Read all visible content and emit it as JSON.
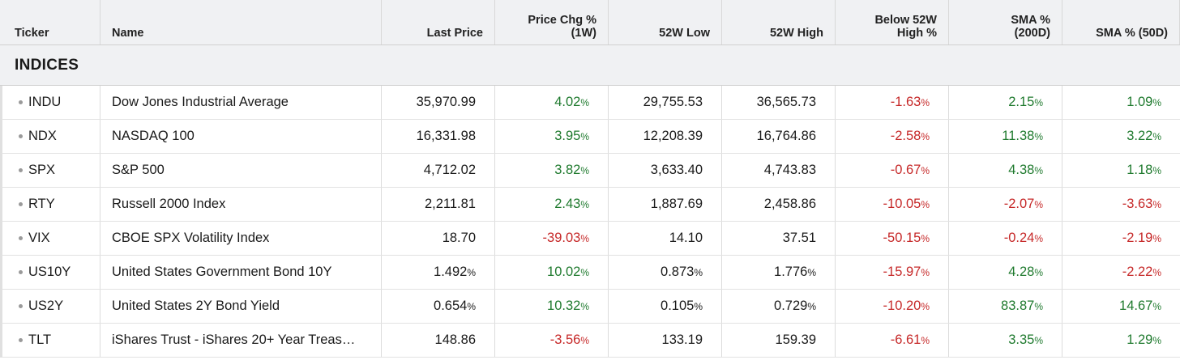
{
  "headers": {
    "ticker": "Ticker",
    "name": "Name",
    "last_price": "Last Price",
    "price_chg_1": "Price Chg %",
    "price_chg_2": "(1W)",
    "low_52w": "52W Low",
    "high_52w": "52W High",
    "below_high_1": "Below 52W",
    "below_high_2": "High %",
    "sma200_1": "SMA %",
    "sma200_2": "(200D)",
    "sma50": "SMA % (50D)"
  },
  "section_title": "INDICES",
  "colors": {
    "positive": "#1f7a2e",
    "negative": "#c62828"
  },
  "rows": [
    {
      "ticker": "INDU",
      "name": "Dow Jones Industrial Average",
      "last": "35,970.99",
      "last_pct": "",
      "chg": "4.02",
      "low": "29,755.53",
      "low_pct": "",
      "high": "36,565.73",
      "high_pct": "",
      "below": "-1.63",
      "sma200": "2.15",
      "sma50": "1.09"
    },
    {
      "ticker": "NDX",
      "name": "NASDAQ 100",
      "last": "16,331.98",
      "last_pct": "",
      "chg": "3.95",
      "low": "12,208.39",
      "low_pct": "",
      "high": "16,764.86",
      "high_pct": "",
      "below": "-2.58",
      "sma200": "11.38",
      "sma50": "3.22"
    },
    {
      "ticker": "SPX",
      "name": "S&P 500",
      "last": "4,712.02",
      "last_pct": "",
      "chg": "3.82",
      "low": "3,633.40",
      "low_pct": "",
      "high": "4,743.83",
      "high_pct": "",
      "below": "-0.67",
      "sma200": "4.38",
      "sma50": "1.18"
    },
    {
      "ticker": "RTY",
      "name": "Russell 2000 Index",
      "last": "2,211.81",
      "last_pct": "",
      "chg": "2.43",
      "low": "1,887.69",
      "low_pct": "",
      "high": "2,458.86",
      "high_pct": "",
      "below": "-10.05",
      "sma200": "-2.07",
      "sma50": "-3.63"
    },
    {
      "ticker": "VIX",
      "name": "CBOE SPX Volatility Index",
      "last": "18.70",
      "last_pct": "",
      "chg": "-39.03",
      "low": "14.10",
      "low_pct": "",
      "high": "37.51",
      "high_pct": "",
      "below": "-50.15",
      "sma200": "-0.24",
      "sma50": "-2.19"
    },
    {
      "ticker": "US10Y",
      "name": "United States Government Bond 10Y",
      "last": "1.492",
      "last_pct": "%",
      "chg": "10.02",
      "low": "0.873",
      "low_pct": "%",
      "high": "1.776",
      "high_pct": "%",
      "below": "-15.97",
      "sma200": "4.28",
      "sma50": "-2.22"
    },
    {
      "ticker": "US2Y",
      "name": "United States 2Y Bond Yield",
      "last": "0.654",
      "last_pct": "%",
      "chg": "10.32",
      "low": "0.105",
      "low_pct": "%",
      "high": "0.729",
      "high_pct": "%",
      "below": "-10.20",
      "sma200": "83.87",
      "sma50": "14.67"
    },
    {
      "ticker": "TLT",
      "name": "iShares Trust - iShares 20+ Year Treas…",
      "last": "148.86",
      "last_pct": "",
      "chg": "-3.56",
      "low": "133.19",
      "low_pct": "",
      "high": "159.39",
      "high_pct": "",
      "below": "-6.61",
      "sma200": "3.35",
      "sma50": "1.29"
    }
  ],
  "pct_symbol": "%"
}
